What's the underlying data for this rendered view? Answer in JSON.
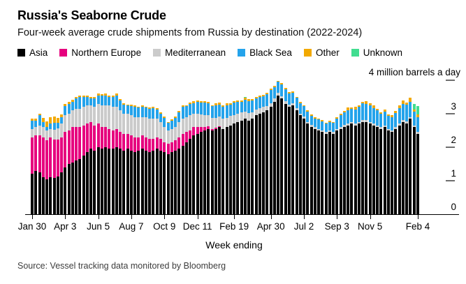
{
  "header": {
    "title": "Russia's Seaborne Crude",
    "subtitle": "Four-week average crude shipments from Russia by destination (2022-2024)"
  },
  "legend": {
    "items": [
      {
        "label": "Asia",
        "color": "#000000"
      },
      {
        "label": "Northern Europe",
        "color": "#e6007e"
      },
      {
        "label": "Mediterranean",
        "color": "#cbcbcb"
      },
      {
        "label": "Black Sea",
        "color": "#24a3eb"
      },
      {
        "label": "Other",
        "color": "#f2a900"
      },
      {
        "label": "Unknown",
        "color": "#41dd90"
      }
    ]
  },
  "axis": {
    "unit_label": "4 million barrels a day",
    "y_ticks": [
      {
        "value": 4,
        "label": ""
      },
      {
        "value": 3,
        "label": "3"
      },
      {
        "value": 2,
        "label": "2"
      },
      {
        "value": 1,
        "label": "1"
      },
      {
        "value": 0,
        "label": "0"
      }
    ],
    "x_label": "Week ending",
    "x_ticks": [
      {
        "label": "Jan 30",
        "week": 0
      },
      {
        "label": "Apr 3",
        "week": 9
      },
      {
        "label": "Jun 5",
        "week": 18
      },
      {
        "label": "Aug 7",
        "week": 27
      },
      {
        "label": "Oct 9",
        "week": 36
      },
      {
        "label": "Dec 11",
        "week": 45
      },
      {
        "label": "Feb 19",
        "week": 55
      },
      {
        "label": "Apr 30",
        "week": 65
      },
      {
        "label": "Jul 2",
        "week": 74
      },
      {
        "label": "Sep 3",
        "week": 83
      },
      {
        "label": "Nov 5",
        "week": 92
      },
      {
        "label": "Feb 4",
        "week": 105
      }
    ]
  },
  "source": "Source: Vessel tracking data monitored by Bloomberg",
  "chart_data": {
    "type": "bar",
    "stacked": true,
    "title": "Russia's Seaborne Crude",
    "subtitle": "Four-week average crude shipments from Russia by destination (2022-2024)",
    "x_unit": "week",
    "n_weeks": 106,
    "x_range": [
      "Jan 30 2022",
      "Feb 4 2024"
    ],
    "ylabel": "million barrels a day",
    "ylim": [
      0,
      4
    ],
    "grid": false,
    "legend_position": "top",
    "series": [
      {
        "name": "Asia",
        "color": "#000000",
        "values": [
          1.2,
          1.3,
          1.25,
          1.1,
          1.05,
          1.1,
          1.08,
          1.12,
          1.25,
          1.4,
          1.5,
          1.55,
          1.6,
          1.65,
          1.75,
          1.85,
          1.95,
          1.9,
          2.0,
          1.95,
          2.0,
          1.95,
          1.95,
          2.0,
          1.95,
          1.9,
          1.95,
          1.9,
          1.85,
          1.9,
          1.95,
          1.9,
          1.85,
          1.9,
          1.95,
          1.9,
          1.85,
          1.8,
          1.85,
          1.9,
          1.95,
          2.05,
          2.15,
          2.25,
          2.35,
          2.4,
          2.45,
          2.5,
          2.55,
          2.5,
          2.55,
          2.6,
          2.55,
          2.6,
          2.65,
          2.7,
          2.75,
          2.8,
          2.85,
          2.8,
          2.85,
          2.95,
          3.0,
          3.05,
          3.1,
          3.2,
          3.35,
          3.55,
          3.45,
          3.3,
          3.2,
          3.25,
          3.1,
          2.95,
          2.85,
          2.7,
          2.6,
          2.55,
          2.5,
          2.45,
          2.4,
          2.45,
          2.4,
          2.5,
          2.55,
          2.6,
          2.65,
          2.7,
          2.65,
          2.7,
          2.75,
          2.75,
          2.7,
          2.65,
          2.6,
          2.55,
          2.6,
          2.5,
          2.45,
          2.55,
          2.65,
          2.75,
          2.7,
          2.85,
          2.6,
          2.4
        ]
      },
      {
        "name": "Northern Europe",
        "color": "#e6007e",
        "values": [
          1.1,
          1.05,
          1.1,
          1.2,
          1.15,
          1.2,
          1.15,
          1.1,
          1.05,
          1.05,
          1.0,
          1.05,
          1.0,
          0.95,
          0.9,
          0.85,
          0.8,
          0.75,
          0.7,
          0.65,
          0.6,
          0.6,
          0.55,
          0.55,
          0.5,
          0.5,
          0.45,
          0.45,
          0.45,
          0.4,
          0.4,
          0.4,
          0.4,
          0.35,
          0.35,
          0.35,
          0.3,
          0.3,
          0.3,
          0.3,
          0.35,
          0.35,
          0.3,
          0.25,
          0.25,
          0.2,
          0.15,
          0.1,
          0.08,
          0.05,
          0.03,
          0.02,
          0,
          0,
          0,
          0,
          0,
          0,
          0,
          0,
          0,
          0,
          0,
          0,
          0,
          0,
          0,
          0,
          0,
          0,
          0,
          0,
          0,
          0,
          0,
          0,
          0,
          0,
          0,
          0,
          0,
          0,
          0,
          0,
          0,
          0,
          0,
          0,
          0,
          0,
          0,
          0,
          0,
          0,
          0,
          0,
          0,
          0,
          0,
          0,
          0,
          0,
          0,
          0,
          0,
          0
        ]
      },
      {
        "name": "Mediterranean",
        "color": "#cbcbcb",
        "values": [
          0.25,
          0.25,
          0.3,
          0.3,
          0.3,
          0.25,
          0.3,
          0.35,
          0.4,
          0.5,
          0.5,
          0.5,
          0.55,
          0.55,
          0.55,
          0.55,
          0.5,
          0.55,
          0.6,
          0.65,
          0.65,
          0.7,
          0.7,
          0.65,
          0.65,
          0.6,
          0.6,
          0.6,
          0.6,
          0.6,
          0.55,
          0.6,
          0.6,
          0.6,
          0.55,
          0.5,
          0.45,
          0.4,
          0.4,
          0.4,
          0.45,
          0.45,
          0.45,
          0.45,
          0.4,
          0.4,
          0.38,
          0.35,
          0.33,
          0.32,
          0.3,
          0.3,
          0.3,
          0.28,
          0.28,
          0.26,
          0.25,
          0.24,
          0.22,
          0.22,
          0.2,
          0.18,
          0.16,
          0.15,
          0.13,
          0.12,
          0.1,
          0.08,
          0.08,
          0.08,
          0.08,
          0.07,
          0.07,
          0.06,
          0.06,
          0.06,
          0.06,
          0.05,
          0.05,
          0.05,
          0.05,
          0.05,
          0.05,
          0.05,
          0.05,
          0.06,
          0.06,
          0.06,
          0.05,
          0.06,
          0.06,
          0.06,
          0.06,
          0.06,
          0.05,
          0.05,
          0.05,
          0.05,
          0.05,
          0.05,
          0.06,
          0.06,
          0.08,
          0.05,
          0.05,
          0.05
        ]
      },
      {
        "name": "Black Sea",
        "color": "#24a3eb",
        "values": [
          0.25,
          0.2,
          0.3,
          0.15,
          0.1,
          0.15,
          0.2,
          0.15,
          0.2,
          0.28,
          0.3,
          0.25,
          0.3,
          0.35,
          0.3,
          0.25,
          0.2,
          0.25,
          0.25,
          0.3,
          0.3,
          0.25,
          0.3,
          0.35,
          0.3,
          0.28,
          0.25,
          0.28,
          0.3,
          0.28,
          0.3,
          0.28,
          0.3,
          0.32,
          0.28,
          0.25,
          0.28,
          0.22,
          0.25,
          0.28,
          0.3,
          0.35,
          0.32,
          0.35,
          0.32,
          0.35,
          0.35,
          0.38,
          0.35,
          0.35,
          0.38,
          0.35,
          0.35,
          0.38,
          0.35,
          0.38,
          0.35,
          0.32,
          0.35,
          0.35,
          0.35,
          0.32,
          0.35,
          0.32,
          0.35,
          0.38,
          0.35,
          0.32,
          0.35,
          0.35,
          0.32,
          0.3,
          0.3,
          0.3,
          0.32,
          0.3,
          0.28,
          0.25,
          0.28,
          0.28,
          0.25,
          0.25,
          0.28,
          0.3,
          0.35,
          0.38,
          0.4,
          0.38,
          0.42,
          0.45,
          0.5,
          0.48,
          0.5,
          0.45,
          0.45,
          0.4,
          0.42,
          0.38,
          0.4,
          0.42,
          0.45,
          0.48,
          0.5,
          0.45,
          0.42,
          0.45
        ]
      },
      {
        "name": "Other",
        "color": "#f2a900",
        "values": [
          0.06,
          0.05,
          0.05,
          0.12,
          0.18,
          0.2,
          0.18,
          0.15,
          0.08,
          0.06,
          0.05,
          0.06,
          0.05,
          0.05,
          0.05,
          0.05,
          0.04,
          0.05,
          0.05,
          0.04,
          0.05,
          0.04,
          0.04,
          0.05,
          0.04,
          0.04,
          0.03,
          0.05,
          0.04,
          0.03,
          0.04,
          0.03,
          0.04,
          0.03,
          0.03,
          0.04,
          0.03,
          0.04,
          0.03,
          0.03,
          0.04,
          0.05,
          0.04,
          0.04,
          0.05,
          0.04,
          0.05,
          0.04,
          0.05,
          0.04,
          0.05,
          0.06,
          0.04,
          0.05,
          0.04,
          0.04,
          0.05,
          0.04,
          0.05,
          0.06,
          0.04,
          0.05,
          0.04,
          0.04,
          0.05,
          0.04,
          0.04,
          0.03,
          0.04,
          0.05,
          0.04,
          0.04,
          0.03,
          0.04,
          0.03,
          0.04,
          0.03,
          0.04,
          0.03,
          0.04,
          0.03,
          0.04,
          0.03,
          0.05,
          0.04,
          0.05,
          0.08,
          0.05,
          0.08,
          0.05,
          0.05,
          0.08,
          0.05,
          0.08,
          0.05,
          0.05,
          0.06,
          0.05,
          0.05,
          0.06,
          0.08,
          0.1,
          0.05,
          0.13,
          0.05,
          0.08
        ]
      },
      {
        "name": "Unknown",
        "color": "#41dd90",
        "values": [
          0,
          0,
          0,
          0,
          0,
          0,
          0,
          0,
          0,
          0,
          0,
          0,
          0,
          0,
          0,
          0,
          0,
          0,
          0,
          0,
          0,
          0,
          0,
          0,
          0,
          0,
          0,
          0,
          0,
          0,
          0,
          0,
          0,
          0,
          0,
          0,
          0,
          0,
          0,
          0,
          0,
          0,
          0,
          0,
          0,
          0,
          0,
          0,
          0,
          0,
          0,
          0,
          0,
          0,
          0,
          0,
          0,
          0,
          0.03,
          0,
          0,
          0,
          0,
          0,
          0,
          0,
          0,
          0,
          0,
          0,
          0,
          0,
          0,
          0,
          0,
          0,
          0,
          0,
          0,
          0,
          0,
          0,
          0,
          0,
          0,
          0,
          0,
          0,
          0,
          0,
          0,
          0,
          0,
          0,
          0,
          0,
          0,
          0,
          0,
          0,
          0,
          0,
          0,
          0,
          0.18,
          0.25
        ]
      }
    ]
  }
}
